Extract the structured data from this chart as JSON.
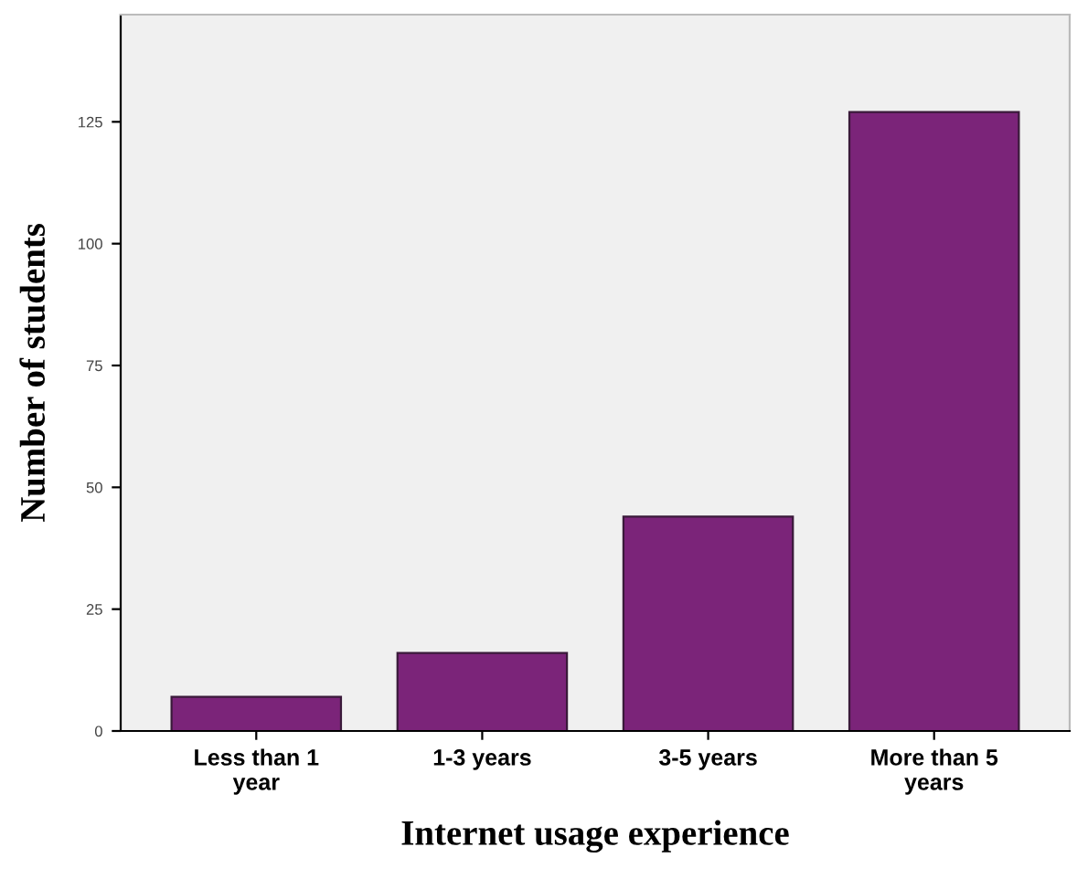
{
  "chart_data": {
    "type": "bar",
    "xlabel": "Internet usage experience",
    "ylabel": "Number of students",
    "categories": [
      "Less than 1\nyear",
      "1-3 years",
      "3-5 years",
      "More than 5\nyears"
    ],
    "values": [
      7,
      16,
      44,
      127
    ],
    "color": "#7b2479",
    "ylim": [
      0,
      147
    ],
    "yticks": [
      0,
      25,
      50,
      75,
      100,
      125
    ],
    "grid": false
  }
}
